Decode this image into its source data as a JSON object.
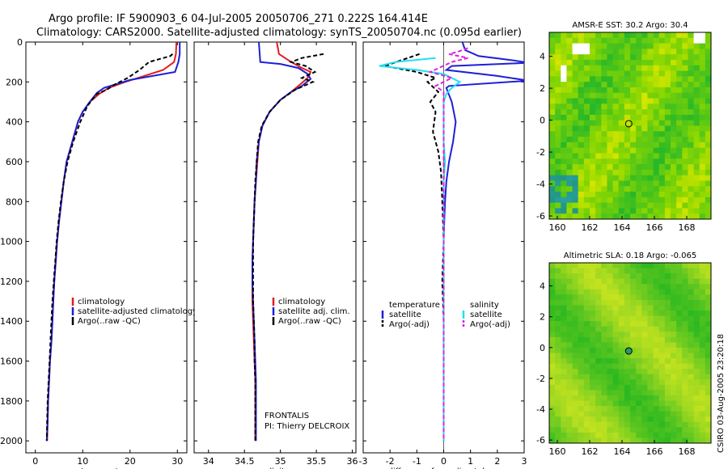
{
  "title_line1": "Argo profile: IF 5900903_6 04-Jul-2005 20050706_271 0.222S 164.414E",
  "title_line2": "Climatology: CARS2000. Satellite-adjusted climatology: synTS_20050704.nc (0.095d earlier)",
  "side_label": "CSIRO 03-Aug-2005 23:20:18",
  "colors": {
    "climatology": "#e31a1c",
    "satellite_adjusted": "#1f1fd6",
    "argo": "#000000",
    "salinity_satellite": "#22e0ee",
    "salinity_argo": "#e020e0"
  },
  "chart_data": [
    {
      "id": "temperature",
      "type": "line",
      "xlabel": "temperature",
      "xlim": [
        -2,
        32
      ],
      "ylim": [
        2060,
        0
      ],
      "xticks": [
        0,
        10,
        20,
        30
      ],
      "yticks": [
        0,
        200,
        400,
        600,
        800,
        1000,
        1200,
        1400,
        1600,
        1800,
        2000
      ],
      "legend": [
        "climatology",
        "satellite-adjusted climatology",
        "Argo(..raw -QC)"
      ],
      "series": [
        {
          "name": "climatology",
          "color": "#e31a1c",
          "dash": "none",
          "points": [
            [
              29.8,
              0
            ],
            [
              29.7,
              60
            ],
            [
              29.3,
              100
            ],
            [
              27,
              140
            ],
            [
              23,
              170
            ],
            [
              19,
              200
            ],
            [
              15.5,
              230
            ],
            [
              13.5,
              260
            ],
            [
              11.5,
              300
            ],
            [
              10,
              350
            ],
            [
              9,
              400
            ],
            [
              7.8,
              500
            ],
            [
              6.6,
              600
            ],
            [
              6,
              700
            ],
            [
              5.5,
              800
            ],
            [
              5,
              900
            ],
            [
              4.6,
              1000
            ],
            [
              4.3,
              1100
            ],
            [
              4,
              1200
            ],
            [
              3.8,
              1300
            ],
            [
              3.6,
              1400
            ],
            [
              3.4,
              1500
            ],
            [
              3.1,
              1600
            ],
            [
              2.9,
              1700
            ],
            [
              2.7,
              1800
            ],
            [
              2.6,
              1900
            ],
            [
              2.5,
              2000
            ]
          ]
        },
        {
          "name": "satellite-adjusted climatology",
          "color": "#1f1fd6",
          "dash": "none",
          "points": [
            [
              30.5,
              0
            ],
            [
              30.5,
              60
            ],
            [
              30.2,
              100
            ],
            [
              29.5,
              150
            ],
            [
              20,
              190
            ],
            [
              14.5,
              230
            ],
            [
              13,
              255
            ],
            [
              11.5,
              300
            ],
            [
              10,
              350
            ],
            [
              9,
              400
            ],
            [
              7.8,
              500
            ],
            [
              6.6,
              600
            ],
            [
              6,
              700
            ],
            [
              5.5,
              800
            ],
            [
              5,
              900
            ],
            [
              4.6,
              1000
            ],
            [
              4.3,
              1100
            ],
            [
              4,
              1200
            ],
            [
              3.8,
              1300
            ],
            [
              3.6,
              1400
            ],
            [
              3.4,
              1500
            ],
            [
              3.1,
              1600
            ],
            [
              2.9,
              1700
            ],
            [
              2.7,
              1800
            ],
            [
              2.6,
              1900
            ],
            [
              2.4,
              2000
            ]
          ]
        },
        {
          "name": "Argo(..raw -QC)",
          "color": "#000000",
          "dash": "5,3",
          "points": [
            [
              29,
              60
            ],
            [
              28.5,
              70
            ],
            [
              24,
              100
            ],
            [
              22,
              140
            ],
            [
              19.5,
              180
            ],
            [
              17,
              210
            ],
            [
              15,
              240
            ],
            [
              13,
              260
            ],
            [
              11,
              320
            ],
            [
              9.5,
              400
            ],
            [
              8,
              500
            ],
            [
              6.8,
              600
            ],
            [
              6,
              700
            ],
            [
              5.4,
              800
            ],
            [
              4.9,
              900
            ],
            [
              4.5,
              1000
            ],
            [
              4.2,
              1100
            ],
            [
              3.9,
              1200
            ],
            [
              3.6,
              1300
            ],
            [
              3.4,
              1400
            ],
            [
              3.2,
              1500
            ],
            [
              3,
              1600
            ],
            [
              2.8,
              1700
            ],
            [
              2.6,
              1800
            ],
            [
              2.5,
              1900
            ],
            [
              2.4,
              2000
            ]
          ]
        }
      ]
    },
    {
      "id": "salinity",
      "type": "line",
      "xlabel": "salinity",
      "xlim": [
        33.8,
        36.05
      ],
      "ylim": [
        2060,
        0
      ],
      "xticks": [
        34,
        34.5,
        35,
        35.5,
        36
      ],
      "xticklabels": [
        "34",
        "34.5",
        "35",
        "35.5",
        "36"
      ],
      "yticks": [
        0,
        200,
        400,
        600,
        800,
        1000,
        1200,
        1400,
        1600,
        1800,
        2000
      ],
      "legend": [
        "climatology",
        "satellite adj. clim.",
        "Argo(..raw -QC)"
      ],
      "annotation": [
        "FRONTALIS",
        "PI: Thierry DELCROIX"
      ],
      "series": [
        {
          "name": "climatology",
          "color": "#e31a1c",
          "dash": "none",
          "points": [
            [
              34.95,
              0
            ],
            [
              34.98,
              60
            ],
            [
              35.15,
              100
            ],
            [
              35.3,
              130
            ],
            [
              35.42,
              150
            ],
            [
              35.38,
              180
            ],
            [
              35.25,
              220
            ],
            [
              35.15,
              250
            ],
            [
              35,
              290
            ],
            [
              34.85,
              350
            ],
            [
              34.75,
              420
            ],
            [
              34.7,
              500
            ],
            [
              34.68,
              600
            ],
            [
              34.66,
              700
            ],
            [
              34.64,
              800
            ],
            [
              34.63,
              900
            ],
            [
              34.62,
              1000
            ],
            [
              34.61,
              1100
            ],
            [
              34.61,
              1200
            ],
            [
              34.61,
              1300
            ],
            [
              34.62,
              1400
            ],
            [
              34.63,
              1500
            ],
            [
              34.64,
              1600
            ],
            [
              34.65,
              1700
            ],
            [
              34.65,
              1800
            ],
            [
              34.65,
              1900
            ],
            [
              34.65,
              2000
            ]
          ]
        },
        {
          "name": "satellite adj. clim.",
          "color": "#1f1fd6",
          "dash": "none",
          "points": [
            [
              34.7,
              0
            ],
            [
              34.72,
              100
            ],
            [
              35,
              110
            ],
            [
              35.25,
              130
            ],
            [
              35.38,
              160
            ],
            [
              35.42,
              185
            ],
            [
              35.3,
              220
            ],
            [
              35.15,
              250
            ],
            [
              35,
              290
            ],
            [
              34.85,
              350
            ],
            [
              34.75,
              420
            ],
            [
              34.7,
              500
            ],
            [
              34.67,
              600
            ],
            [
              34.66,
              700
            ],
            [
              34.64,
              800
            ],
            [
              34.63,
              900
            ],
            [
              34.62,
              1000
            ],
            [
              34.61,
              1100
            ],
            [
              34.61,
              1200
            ],
            [
              34.62,
              1300
            ],
            [
              34.63,
              1400
            ],
            [
              34.64,
              1500
            ],
            [
              34.65,
              1600
            ],
            [
              34.66,
              1700
            ],
            [
              34.66,
              1800
            ],
            [
              34.66,
              1900
            ],
            [
              34.66,
              2000
            ]
          ]
        },
        {
          "name": "Argo(..raw -QC)",
          "color": "#000000",
          "dash": "5,3",
          "points": [
            [
              35.6,
              60
            ],
            [
              35.3,
              80
            ],
            [
              35.15,
              100
            ],
            [
              35.35,
              120
            ],
            [
              35.48,
              150
            ],
            [
              35.3,
              180
            ],
            [
              35.45,
              200
            ],
            [
              35.2,
              240
            ],
            [
              35,
              290
            ],
            [
              34.85,
              350
            ],
            [
              34.74,
              420
            ],
            [
              34.69,
              500
            ],
            [
              34.67,
              600
            ],
            [
              34.65,
              700
            ],
            [
              34.64,
              800
            ],
            [
              34.63,
              900
            ],
            [
              34.62,
              1000
            ],
            [
              34.62,
              1100
            ],
            [
              34.62,
              1200
            ],
            [
              34.62,
              1300
            ],
            [
              34.63,
              1400
            ],
            [
              34.64,
              1500
            ],
            [
              34.64,
              1600
            ],
            [
              34.65,
              1700
            ],
            [
              34.65,
              1800
            ],
            [
              34.65,
              1900
            ],
            [
              34.65,
              2000
            ]
          ]
        }
      ]
    },
    {
      "id": "difference",
      "type": "line",
      "xlabel": "difference from climatology",
      "xlim": [
        -3,
        3
      ],
      "ylim": [
        2060,
        0
      ],
      "xticks": [
        -3,
        -2,
        -1,
        0,
        1,
        2,
        3
      ],
      "yticks": [
        0,
        200,
        400,
        600,
        800,
        1000,
        1200,
        1400,
        1600,
        1800,
        2000
      ],
      "legend_left_title": "temperature",
      "legend_left": [
        "satellite",
        "Argo(-adj)"
      ],
      "legend_right_title": "salinity",
      "legend_right": [
        "satellite",
        "Argo(-adj)"
      ],
      "series": [
        {
          "name": "temperature satellite",
          "color": "#1f1fd6",
          "dash": "none",
          "points": [
            [
              0.7,
              0
            ],
            [
              0.8,
              40
            ],
            [
              1.3,
              70
            ],
            [
              2.5,
              90
            ],
            [
              3,
              100
            ],
            [
              3,
              105
            ],
            [
              0.3,
              120
            ],
            [
              0.1,
              140
            ],
            [
              2,
              170
            ],
            [
              3,
              190
            ],
            [
              3,
              195
            ],
            [
              0.2,
              220
            ],
            [
              0.1,
              230
            ],
            [
              0.3,
              300
            ],
            [
              0.45,
              400
            ],
            [
              0.35,
              500
            ],
            [
              0.2,
              600
            ],
            [
              0.1,
              700
            ],
            [
              0.05,
              800
            ],
            [
              0.02,
              900
            ],
            [
              0,
              1000
            ],
            [
              0,
              1400
            ],
            [
              0,
              1800
            ],
            [
              0,
              2000
            ]
          ]
        },
        {
          "name": "temperature Argo(-adj)",
          "color": "#000000",
          "dash": "5,3",
          "points": [
            [
              -0.9,
              60
            ],
            [
              -2.2,
              120
            ],
            [
              -1,
              150
            ],
            [
              -0.3,
              180
            ],
            [
              -0.6,
              200
            ],
            [
              -0.2,
              250
            ],
            [
              -0.5,
              300
            ],
            [
              -0.3,
              350
            ],
            [
              -0.4,
              450
            ],
            [
              -0.2,
              550
            ],
            [
              -0.1,
              650
            ],
            [
              -0.05,
              800
            ],
            [
              0,
              1000
            ],
            [
              -0.05,
              1200
            ],
            [
              0,
              1400
            ],
            [
              0,
              2000
            ]
          ]
        },
        {
          "name": "salinity satellite",
          "color": "#22e0ee",
          "dash": "none",
          "points": [
            [
              -0.3,
              80
            ],
            [
              -1.8,
              100
            ],
            [
              -2.4,
              120
            ],
            [
              -1,
              140
            ],
            [
              0,
              160
            ],
            [
              0.6,
              200
            ],
            [
              0.3,
              230
            ],
            [
              0.1,
              260
            ],
            [
              0,
              300
            ],
            [
              0,
              500
            ],
            [
              0.05,
              600
            ],
            [
              0,
              700
            ],
            [
              0,
              900
            ],
            [
              0,
              2000
            ]
          ]
        },
        {
          "name": "salinity Argo(-adj)",
          "color": "#e020e0",
          "dash": "5,3",
          "points": [
            [
              0.9,
              30
            ],
            [
              0.5,
              50
            ],
            [
              0.2,
              60
            ],
            [
              0.9,
              80
            ],
            [
              0.3,
              100
            ],
            [
              -0.5,
              150
            ],
            [
              0.3,
              180
            ],
            [
              -0.3,
              220
            ],
            [
              0,
              250
            ],
            [
              0,
              2000
            ]
          ]
        }
      ]
    },
    {
      "id": "sst_map",
      "type": "heatmap",
      "title": "AMSR-E SST: 30.2 Argo: 30.4",
      "xlim": [
        159.5,
        169.5
      ],
      "ylim": [
        -6.2,
        5.5
      ],
      "xticks": [
        160,
        162,
        164,
        166,
        168
      ],
      "yticks": [
        -6,
        -4,
        -2,
        0,
        2,
        4
      ],
      "marker": [
        164.414,
        -0.222
      ]
    },
    {
      "id": "sla_map",
      "type": "heatmap",
      "title": "Altimetric SLA: 0.18 Argo: -0.065",
      "xlim": [
        159.5,
        169.5
      ],
      "ylim": [
        -6.2,
        5.5
      ],
      "xticks": [
        160,
        162,
        164,
        166,
        168
      ],
      "yticks": [
        -6,
        -4,
        -2,
        0,
        2,
        4
      ],
      "marker": [
        164.414,
        -0.222
      ]
    }
  ]
}
